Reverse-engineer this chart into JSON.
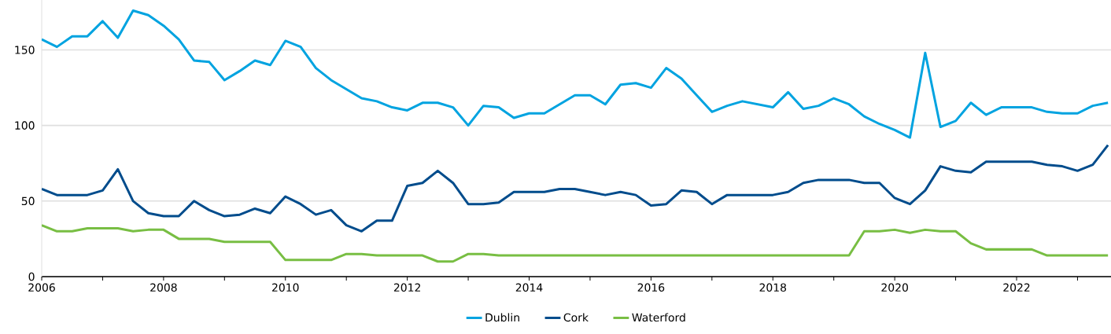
{
  "chart_data": {
    "type": "line",
    "x": [
      2006,
      2006.25,
      2006.5,
      2006.75,
      2007,
      2007.25,
      2007.5,
      2007.75,
      2008,
      2008.25,
      2008.5,
      2008.75,
      2009,
      2009.25,
      2009.5,
      2009.75,
      2010,
      2010.25,
      2010.5,
      2010.75,
      2011,
      2011.25,
      2011.5,
      2011.75,
      2012,
      2012.25,
      2012.5,
      2012.75,
      2013,
      2013.25,
      2013.5,
      2013.75,
      2014,
      2014.25,
      2014.5,
      2014.75,
      2015,
      2015.25,
      2015.5,
      2015.75,
      2016,
      2016.25,
      2016.5,
      2016.75,
      2017,
      2017.25,
      2017.5,
      2017.75,
      2018,
      2018.25,
      2018.5,
      2018.75,
      2019,
      2019.25,
      2019.5,
      2019.75,
      2020,
      2020.25,
      2020.5,
      2020.75,
      2021,
      2021.25,
      2021.5,
      2021.75,
      2022,
      2022.25,
      2022.5,
      2022.75,
      2023,
      2023.25,
      2023.5
    ],
    "series": [
      {
        "name": "Dublin",
        "color": "#00a3e0",
        "values": [
          157,
          152,
          159,
          159,
          169,
          158,
          176,
          173,
          166,
          157,
          143,
          142,
          130,
          136,
          143,
          140,
          156,
          152,
          138,
          130,
          124,
          118,
          116,
          112,
          110,
          115,
          115,
          112,
          100,
          113,
          112,
          105,
          108,
          108,
          114,
          120,
          120,
          114,
          127,
          128,
          125,
          138,
          131,
          120,
          109,
          113,
          116,
          114,
          112,
          122,
          111,
          113,
          118,
          114,
          106,
          101,
          97,
          92,
          148,
          99,
          103,
          115,
          107,
          112,
          112,
          112,
          109,
          108,
          108,
          113,
          115
        ]
      },
      {
        "name": "Cork",
        "color": "#004c8c",
        "values": [
          58,
          54,
          54,
          54,
          57,
          71,
          50,
          42,
          40,
          40,
          50,
          44,
          40,
          41,
          45,
          42,
          53,
          48,
          41,
          44,
          34,
          30,
          37,
          37,
          60,
          62,
          70,
          62,
          48,
          48,
          49,
          56,
          56,
          56,
          58,
          58,
          56,
          54,
          56,
          54,
          47,
          48,
          57,
          56,
          48,
          54,
          54,
          54,
          54,
          56,
          62,
          64,
          64,
          64,
          62,
          62,
          52,
          48,
          57,
          73,
          70,
          69,
          76,
          76,
          76,
          76,
          74,
          73,
          70,
          74,
          87
        ]
      },
      {
        "name": "Waterford",
        "color": "#78be43",
        "values": [
          34,
          30,
          30,
          32,
          32,
          32,
          30,
          31,
          31,
          25,
          25,
          25,
          23,
          23,
          23,
          23,
          11,
          11,
          11,
          11,
          15,
          15,
          14,
          14,
          14,
          14,
          10,
          10,
          15,
          15,
          14,
          14,
          14,
          14,
          14,
          14,
          14,
          14,
          14,
          14,
          14,
          14,
          14,
          14,
          14,
          14,
          14,
          14,
          14,
          14,
          14,
          14,
          14,
          14,
          30,
          30,
          31,
          29,
          31,
          30,
          30,
          22,
          18,
          18,
          18,
          18,
          14,
          14,
          14,
          14,
          14
        ]
      }
    ],
    "xlim": [
      2006,
      2023.55
    ],
    "ylim": [
      0,
      183
    ],
    "xticks": [
      2006,
      {
        "value": 2007,
        "label": null
      },
      2008,
      {
        "value": 2009,
        "label": null
      },
      2010,
      {
        "value": 2011,
        "label": null
      },
      2012,
      {
        "value": 2013,
        "label": null
      },
      2014,
      {
        "value": 2015,
        "label": null
      },
      2016,
      {
        "value": 2017,
        "label": null
      },
      2018,
      {
        "value": 2019,
        "label": null
      },
      2020,
      {
        "value": 2021,
        "label": null
      },
      2022,
      {
        "value": 2023,
        "label": null
      }
    ],
    "yticks": [
      0,
      50,
      100,
      150
    ],
    "grid": "y",
    "legend": "bottom",
    "marker": "none",
    "line_style": "solid"
  }
}
